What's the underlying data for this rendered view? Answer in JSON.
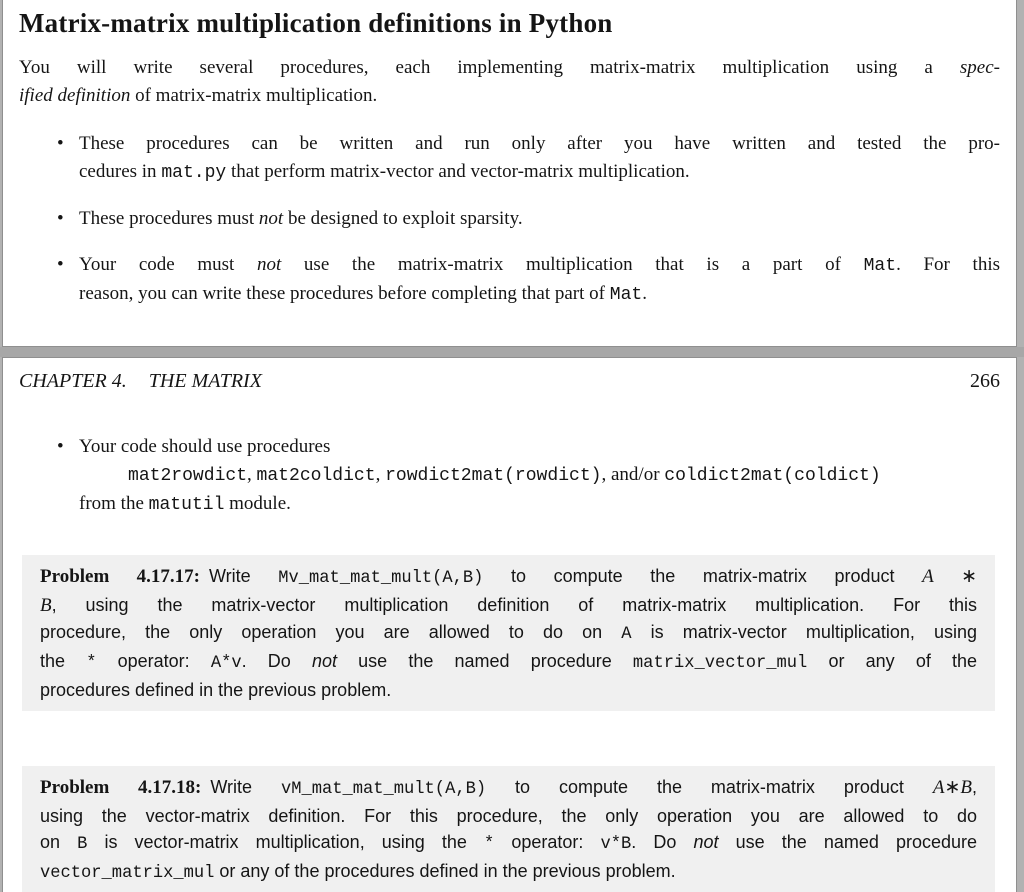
{
  "colors": {
    "viewer_background": "#b2b2b2",
    "page_gap_band": "#a7a7a7",
    "page_background": "#ffffff",
    "page_border": "#8f8f8f",
    "problem_box_background": "#f0f0f0",
    "text": "#151515"
  },
  "glyphs": {
    "bullet": "•"
  },
  "page1": {
    "heading": "Matrix-matrix multiplication definitions in Python",
    "intro": [
      {
        "j": true,
        "runs": [
          [
            "rm",
            "You will write several procedures, each implementing matrix-matrix multiplication using a "
          ],
          [
            "it",
            "spec-"
          ]
        ]
      },
      {
        "runs": [
          [
            "it",
            "ified definition"
          ],
          [
            "rm",
            " of matrix-matrix multiplication."
          ]
        ]
      }
    ],
    "bullets": [
      [
        {
          "j": true,
          "runs": [
            [
              "rm",
              "These procedures can be written and run only after you have written and tested the pro-"
            ]
          ]
        },
        {
          "runs": [
            [
              "rm",
              "cedures in "
            ],
            [
              "tt",
              "mat.py"
            ],
            [
              "rm",
              " that perform matrix-vector and vector-matrix multiplication."
            ]
          ]
        }
      ],
      [
        {
          "runs": [
            [
              "rm",
              "These procedures must "
            ],
            [
              "it",
              "not"
            ],
            [
              "rm",
              " be designed to exploit sparsity."
            ]
          ]
        }
      ],
      [
        {
          "j": true,
          "runs": [
            [
              "rm",
              "Your code must "
            ],
            [
              "it",
              "not"
            ],
            [
              "rm",
              " use the matrix-matrix multiplication that is a part of "
            ],
            [
              "tt",
              "Mat"
            ],
            [
              "rm",
              ". For this"
            ]
          ]
        },
        {
          "runs": [
            [
              "rm",
              "reason, you can write these procedures before completing that part of "
            ],
            [
              "tt",
              "Mat"
            ],
            [
              "rm",
              "."
            ]
          ]
        }
      ]
    ]
  },
  "page2": {
    "chapter_label": "CHAPTER 4.",
    "chapter_title": "THE MATRIX",
    "page_number": "266",
    "bullet": [
      {
        "runs": [
          [
            "rm",
            "Your code should use procedures"
          ]
        ]
      },
      {
        "ind": 49,
        "runs": [
          [
            "tt",
            "mat2rowdict"
          ],
          [
            "rm",
            ", "
          ],
          [
            "tt",
            "mat2coldict"
          ],
          [
            "rm",
            ", "
          ],
          [
            "tt",
            "rowdict2mat(rowdict)"
          ],
          [
            "rm",
            ", and/or "
          ],
          [
            "tt",
            "coldict2mat(coldict)"
          ]
        ]
      },
      {
        "runs": [
          [
            "rm",
            "from the "
          ],
          [
            "tt",
            "matutil"
          ],
          [
            "rm",
            " module."
          ]
        ]
      }
    ],
    "problems": [
      {
        "label": "Problem 4.17.17:",
        "lines": [
          {
            "j": true,
            "runs": [
              [
                "bf",
                "Problem 4.17.17:"
              ],
              [
                "sf",
                " Write "
              ],
              [
                "tt",
                "Mv_mat_mat_mult(A,B)"
              ],
              [
                "sf",
                " to compute the matrix-matrix product "
              ],
              [
                "mi",
                "A"
              ],
              [
                "rm",
                " ∗"
              ]
            ]
          },
          {
            "j": true,
            "runs": [
              [
                "mi",
                "B"
              ],
              [
                "sf",
                ", using the matrix-vector multiplication definition of matrix-matrix multiplication. For this"
              ]
            ]
          },
          {
            "j": true,
            "runs": [
              [
                "sf",
                "procedure, the only operation you are allowed to do on "
              ],
              [
                "tt",
                "A"
              ],
              [
                "sf",
                " is matrix-vector multiplication, using"
              ]
            ]
          },
          {
            "j": true,
            "runs": [
              [
                "sf",
                "the "
              ],
              [
                "tt",
                "*"
              ],
              [
                "sf",
                " operator: "
              ],
              [
                "tt",
                "A*v"
              ],
              [
                "sf",
                ". Do "
              ],
              [
                "si",
                "not"
              ],
              [
                "sf",
                " use the named procedure "
              ],
              [
                "tt",
                "matrix_vector_mul"
              ],
              [
                "sf",
                " or any of the"
              ]
            ]
          },
          {
            "runs": [
              [
                "sf",
                "procedures defined in the previous problem."
              ]
            ]
          }
        ]
      },
      {
        "label": "Problem 4.17.18:",
        "lines": [
          {
            "j": true,
            "runs": [
              [
                "bf",
                "Problem 4.17.18:"
              ],
              [
                "sf",
                " Write "
              ],
              [
                "tt",
                "vM_mat_mat_mult(A,B)"
              ],
              [
                "sf",
                " to compute the matrix-matrix product "
              ],
              [
                "mi",
                "A"
              ],
              [
                "rm",
                "∗"
              ],
              [
                "mi",
                "B"
              ],
              [
                "sf",
                ","
              ]
            ]
          },
          {
            "j": true,
            "runs": [
              [
                "sf",
                "using the vector-matrix definition. For this procedure, the only operation you are allowed to do"
              ]
            ]
          },
          {
            "j": true,
            "runs": [
              [
                "sf",
                "on "
              ],
              [
                "tt",
                "B"
              ],
              [
                "sf",
                " is vector-matrix multiplication, using the "
              ],
              [
                "tt",
                "*"
              ],
              [
                "sf",
                " operator: "
              ],
              [
                "tt",
                "v*B"
              ],
              [
                "sf",
                ". Do "
              ],
              [
                "si",
                "not"
              ],
              [
                "sf",
                " use the named procedure"
              ]
            ]
          },
          {
            "runs": [
              [
                "tt",
                "vector_matrix_mul"
              ],
              [
                "sf",
                " or any of the procedures defined in the previous problem."
              ]
            ]
          }
        ]
      }
    ]
  }
}
